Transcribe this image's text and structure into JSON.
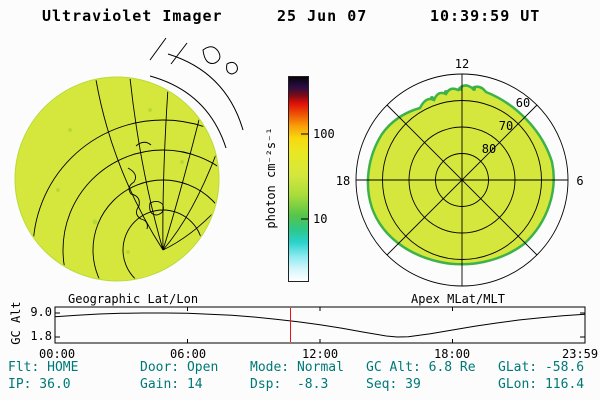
{
  "header": {
    "title": "Ultraviolet Imager",
    "date": "25 Jun 07",
    "time": "10:39:59 UT"
  },
  "left_panel": {
    "caption": "Geographic Lat/Lon"
  },
  "right_panel": {
    "caption": "Apex MLat/MLT",
    "mlt_top": "12",
    "mlt_left": "18",
    "mlt_right": "6",
    "lat_labels": [
      "60",
      "70",
      "80"
    ]
  },
  "colorbar": {
    "label": "photon cm⁻²s⁻¹",
    "tick_top": "100",
    "tick_bottom": "10",
    "gradient_stops": [
      "#08040c 0%",
      "#2c0d44 5%",
      "#7a0b18 9%",
      "#e01008 13%",
      "#f05c06 19%",
      "#f89e08 24%",
      "#f8d80e 30%",
      "#e8e822 37%",
      "#d5e73d 48%",
      "#a8dc3a 58%",
      "#55c44a 68%",
      "#2cc88c 75%",
      "#2ad2cc 81%",
      "#8ceaf0 88%",
      "#d2f6fa 94%",
      "#ffffff 100%"
    ]
  },
  "bottom_plot": {
    "ylabel": "GC Alt",
    "ytick_top": "9.0",
    "ytick_bottom": "1.8",
    "xticks": [
      "00:00",
      "06:00",
      "12:00",
      "18:00",
      "23:59"
    ]
  },
  "status": {
    "row1": [
      "Flt: HOME",
      "Door: Open",
      "Mode: Normal",
      "GC Alt: 6.8 Re",
      "GLat: -58.6"
    ],
    "row2": [
      "IP: 36.0",
      "Gain: 14",
      "Dsp:  -8.3",
      "Seq: 39",
      "GLon: 116.4"
    ]
  },
  "colors": {
    "image_yellow": "#d5e73d",
    "oval_edge_green": "#3db24a",
    "status_text_teal": "#007878",
    "cursor_red": "#ee1111"
  },
  "chart_data": [
    {
      "id": "gc_alt_timeline",
      "type": "line",
      "title": "Geocentric altitude (Re) vs UT",
      "ylabel": "GC Alt",
      "yticks": [
        9.0,
        1.8
      ],
      "ylim": [
        0.0,
        10.8
      ],
      "xticks": [
        "00:00",
        "06:00",
        "12:00",
        "18:00",
        "23:59"
      ],
      "x_hours": [
        0,
        1,
        2,
        3,
        4,
        5,
        6,
        7,
        8,
        9,
        10,
        11,
        12,
        13,
        14,
        15,
        15.5,
        16,
        17,
        18,
        19,
        20,
        21,
        22,
        23,
        24
      ],
      "values": [
        7.9,
        8.35,
        8.7,
        8.9,
        9.0,
        9.0,
        8.9,
        8.65,
        8.3,
        7.8,
        7.15,
        6.4,
        5.5,
        4.4,
        3.2,
        2.1,
        1.8,
        1.9,
        2.8,
        3.9,
        5.0,
        6.0,
        6.9,
        7.6,
        8.2,
        8.6
      ],
      "cursor_hours": 10.666,
      "cursor_value": 6.8
    },
    {
      "id": "uv_disk",
      "type": "heatmap",
      "title": "Geographic Lat/Lon",
      "description": "Full-disk UV image, nearly uniform yellow-green intensity (~30-50 photon cm⁻²s⁻¹), geographic lat/lon grid and coastline outlines overlaid"
    },
    {
      "id": "apex_polar",
      "type": "heatmap",
      "title": "Apex MLat/MLT",
      "description": "Same image mapped onto Apex MLat/MLT polar grid; 12 MLT at top, 18 left, 6 right; dial circles at 80/70/60/50 MLat"
    }
  ]
}
